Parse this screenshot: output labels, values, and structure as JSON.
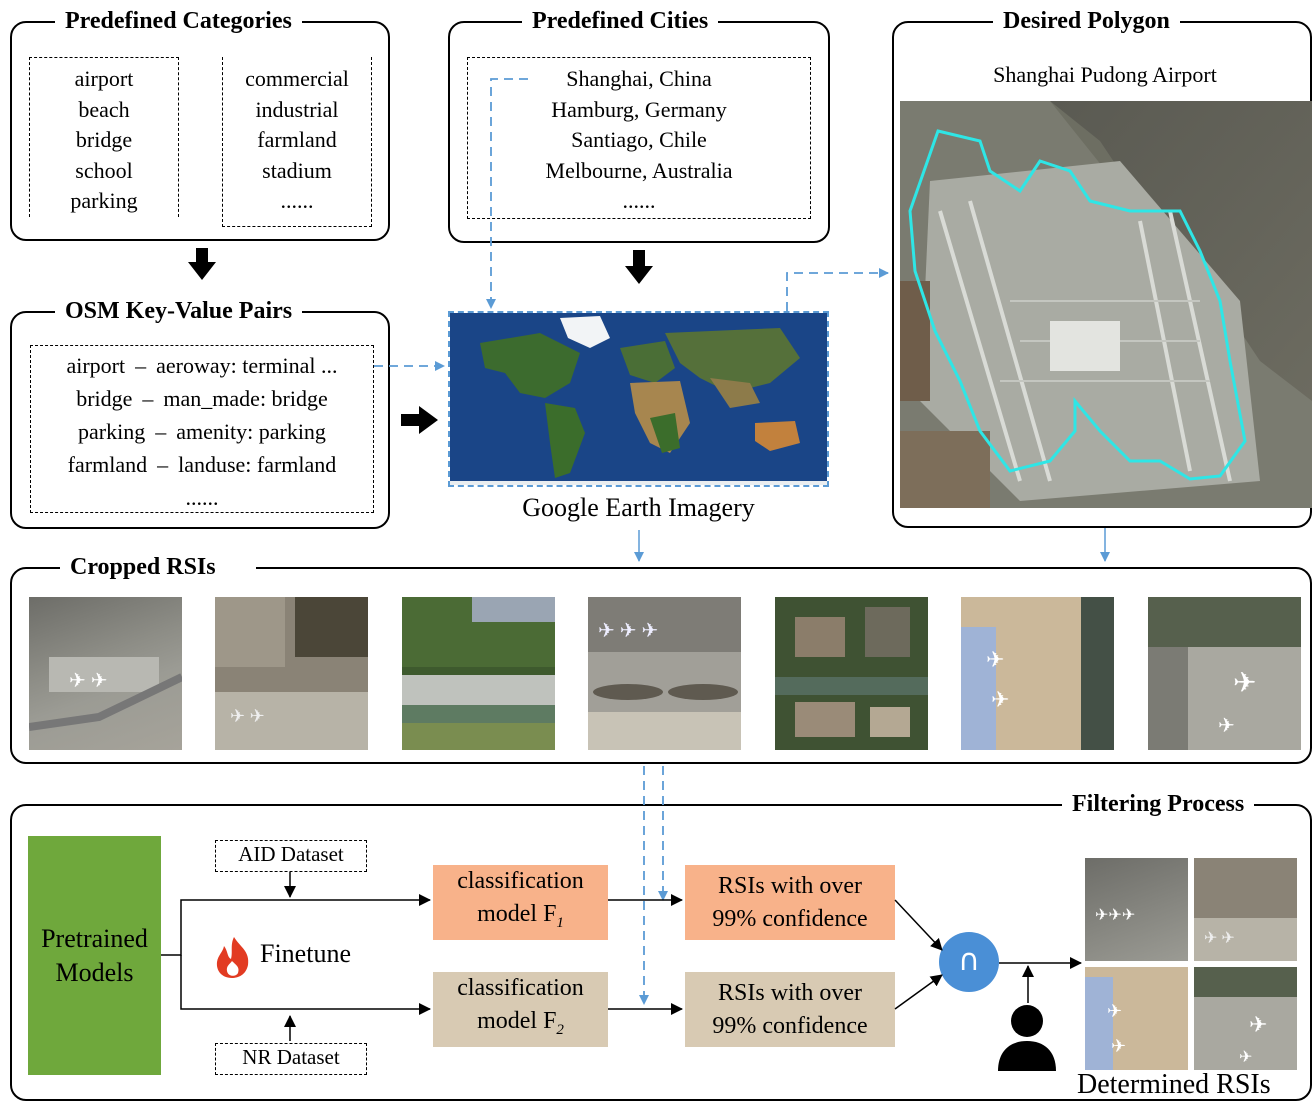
{
  "panels": {
    "categories": {
      "title": "Predefined Categories",
      "col1": [
        "airport",
        "beach",
        "bridge",
        "school",
        "parking"
      ],
      "col2": [
        "commercial",
        "industrial",
        "farmland",
        "stadium",
        "......"
      ]
    },
    "cities": {
      "title": "Predefined Cities",
      "items": [
        "Shanghai, China",
        "Hamburg, Germany",
        "Santiago, Chile",
        "Melbourne, Australia",
        "......"
      ]
    },
    "polygon": {
      "title": "Desired Polygon",
      "subtitle": "Shanghai Pudong Airport"
    },
    "osm": {
      "title": "OSM Key-Value Pairs",
      "pairs": [
        {
          "category": "airport",
          "sep": "–",
          "tag": "aeroway: terminal ..."
        },
        {
          "category": "bridge",
          "sep": "–",
          "tag": "man_made: bridge"
        },
        {
          "category": "parking",
          "sep": "–",
          "tag": "amenity: parking"
        },
        {
          "category": "farmland",
          "sep": "–",
          "tag": "landuse: farmland"
        }
      ],
      "ellipsis": "......"
    },
    "earth": {
      "caption": "Google Earth Imagery"
    },
    "cropped": {
      "title": "Cropped RSIs",
      "count": 7
    },
    "filtering": {
      "title": "Filtering Process",
      "pretrained": "Pretrained Models",
      "aid": "AID Dataset",
      "nr": "NR Dataset",
      "finetune": "Finetune",
      "model1": {
        "line1": "classification",
        "line2": "model F",
        "sub": "1"
      },
      "model2": {
        "line1": "classification",
        "line2": "model F",
        "sub": "2"
      },
      "conf1": {
        "line1": "RSIs with over",
        "line2": "99% confidence"
      },
      "conf2": {
        "line1": "RSIs with over",
        "line2": "99% confidence"
      },
      "intersect": "∩",
      "determined": "Determined RSIs"
    }
  },
  "colors": {
    "arrow_blue": "#5b9bd5",
    "pretrained_green": "#6fa83c",
    "model1_fill": "#f8b28a",
    "model2_fill": "#d8cab3",
    "intersect_fill": "#4a8fd6",
    "polygon_outline": "#2ee6e6"
  },
  "icons": {
    "finetune": "flame-icon",
    "user": "person-icon",
    "intersect": "intersection-icon"
  }
}
